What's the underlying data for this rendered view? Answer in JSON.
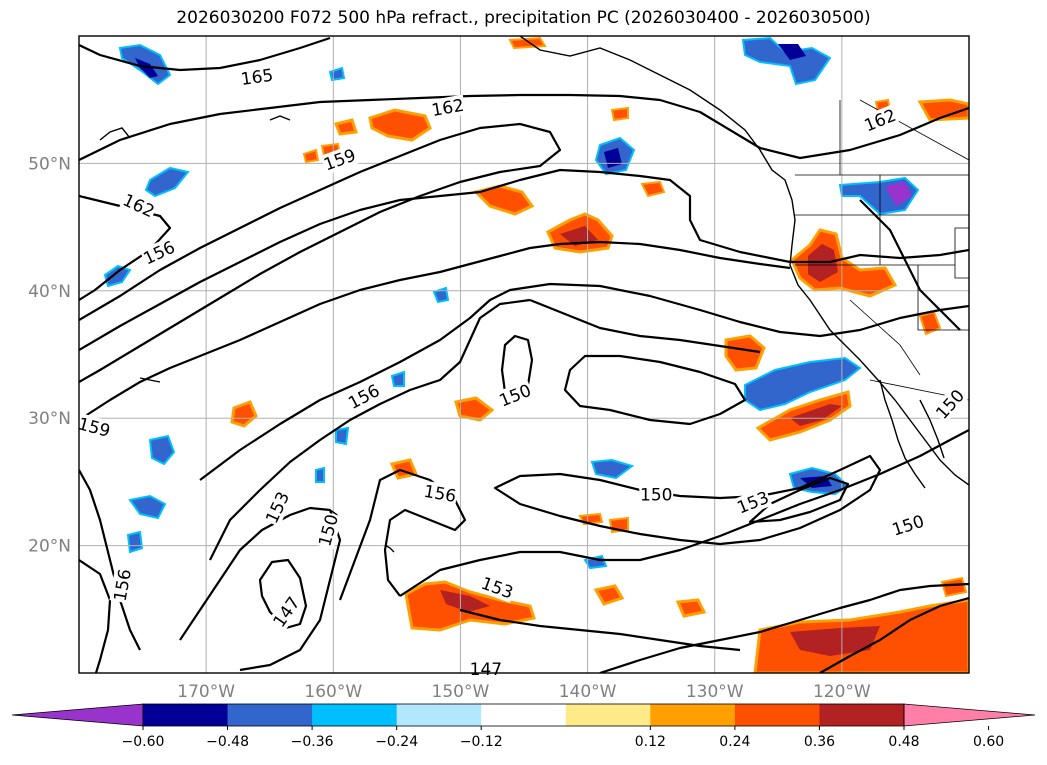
{
  "title": "2026030200 F072 500 hPa refract., precipitation PC (2026030400 - 2026030500)",
  "map": {
    "lon_range": [
      -180,
      -110
    ],
    "lat_range": [
      10,
      60
    ],
    "lat_labels": [
      "50°N",
      "40°N",
      "30°N",
      "20°N"
    ],
    "lat_values": [
      50,
      40,
      30,
      20
    ],
    "lon_labels": [
      "170°W",
      "160°W",
      "150°W",
      "140°W",
      "130°W",
      "120°W"
    ],
    "lon_values": [
      -170,
      -160,
      -150,
      -140,
      -130,
      -120
    ],
    "gridlines": true
  },
  "contour_labels": [
    {
      "text": "165",
      "lon": -166.0,
      "lat": 56.8,
      "angle": -8
    },
    {
      "text": "162",
      "lon": -151.0,
      "lat": 54.4,
      "angle": -10
    },
    {
      "text": "162",
      "lon": -117.0,
      "lat": 53.4,
      "angle": -22
    },
    {
      "text": "159",
      "lon": -159.5,
      "lat": 50.3,
      "angle": -20
    },
    {
      "text": "162",
      "lon": -175.3,
      "lat": 46.7,
      "angle": 25
    },
    {
      "text": "156",
      "lon": -173.7,
      "lat": 43.0,
      "angle": -25
    },
    {
      "text": "156",
      "lon": -157.6,
      "lat": 31.7,
      "angle": -28
    },
    {
      "text": "150",
      "lon": -145.7,
      "lat": 31.8,
      "angle": -22
    },
    {
      "text": "150",
      "lon": -111.5,
      "lat": 31.1,
      "angle": -48
    },
    {
      "text": "159",
      "lon": -178.8,
      "lat": 29.3,
      "angle": 15
    },
    {
      "text": "156",
      "lon": -151.6,
      "lat": 24.1,
      "angle": 10
    },
    {
      "text": "150",
      "lon": -134.6,
      "lat": 24.0,
      "angle": 0
    },
    {
      "text": "153",
      "lon": -127.0,
      "lat": 23.4,
      "angle": -22
    },
    {
      "text": "150",
      "lon": -114.8,
      "lat": 21.6,
      "angle": -18
    },
    {
      "text": "153",
      "lon": -164.4,
      "lat": 23.0,
      "angle": -65
    },
    {
      "text": "150",
      "lon": -160.4,
      "lat": 21.2,
      "angle": -75
    },
    {
      "text": "156",
      "lon": -176.6,
      "lat": 16.9,
      "angle": -80
    },
    {
      "text": "153",
      "lon": -147.1,
      "lat": 16.7,
      "angle": 20
    },
    {
      "text": "147",
      "lon": -163.7,
      "lat": 14.8,
      "angle": -55
    },
    {
      "text": "147",
      "lon": -148.0,
      "lat": 10.3,
      "angle": 0
    }
  ],
  "colorbar": {
    "tick_labels": [
      "−0.60",
      "−0.48",
      "−0.36",
      "−0.24",
      "−0.12",
      "0.12",
      "0.24",
      "0.36",
      "0.48",
      "0.60"
    ],
    "colors": [
      "#9933cc",
      "#000099",
      "#3366cc",
      "#00bfff",
      "#b3e6ff",
      "#ffffff",
      "#ffea8a",
      "#ff9f00",
      "#ff4f00",
      "#b22222",
      "#ff7fa8"
    ]
  }
}
